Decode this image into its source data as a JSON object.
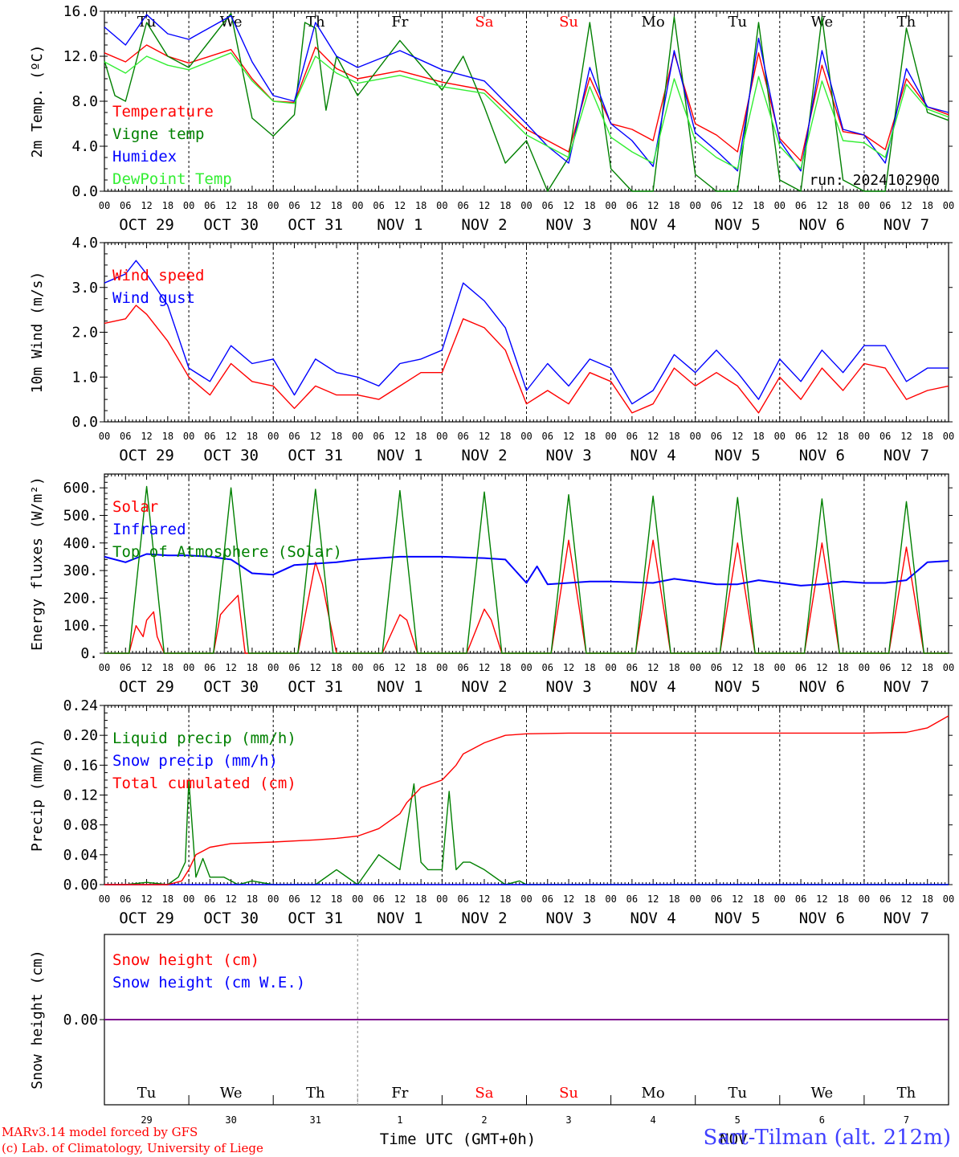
{
  "colors": {
    "red": "#ff0000",
    "green": "#008000",
    "blue": "#0000ff",
    "lightgreen": "#33ee33",
    "purple": "#800080",
    "station": "#4040ff"
  },
  "x_axis": {
    "hour_labels": [
      "00",
      "06",
      "12",
      "18"
    ],
    "date_labels": [
      "OCT 29",
      "OCT 30",
      "OCT 31",
      "NOV  1",
      "NOV  2",
      "NOV  3",
      "NOV  4",
      "NOV  5",
      "NOV  6",
      "NOV  7"
    ],
    "final_hour_label": "00",
    "weekday_labels": [
      "Tu",
      "We",
      "Th",
      "Fr",
      "Sa",
      "Su",
      "Mo",
      "Tu",
      "We",
      "Th"
    ],
    "weekend_flags": [
      false,
      false,
      false,
      false,
      true,
      true,
      false,
      false,
      false,
      false
    ],
    "day_numbers": [
      "29",
      "30",
      "31",
      "1",
      "2",
      "3",
      "4",
      "5",
      "6",
      "7"
    ],
    "month_label": "NOV",
    "title": "Time UTC (GMT+0h)"
  },
  "footer": {
    "model": "MARv3.14 model forced by GFS",
    "lab": "(c) Lab. of Climatology, University of Liege",
    "station": "Sart-Tilman (alt. 212m)"
  },
  "chart_data": [
    {
      "type": "line",
      "ylabel": "2m Temp. (ºC)",
      "ylim": [
        0,
        16
      ],
      "yticks": [
        "0.0",
        "4.0",
        "8.0",
        "12.0",
        "16.0"
      ],
      "annotation": "run: 2024102900",
      "x_unit": "hours since 2024-10-29 00 UTC",
      "series": [
        {
          "name": "Temperature",
          "color": "red",
          "x": [
            0,
            6,
            12,
            18,
            24,
            36,
            42,
            48,
            54,
            60,
            66,
            72,
            84,
            96,
            108,
            120,
            126,
            132,
            138,
            144,
            150,
            156,
            162,
            168,
            174,
            180,
            186,
            192,
            198,
            204,
            210,
            216,
            222,
            228,
            234,
            240
          ],
          "y": [
            12.3,
            11.5,
            13.0,
            12.0,
            11.4,
            12.6,
            10.0,
            8.0,
            7.9,
            12.8,
            10.9,
            10.0,
            10.7,
            9.7,
            9.0,
            5.5,
            4.5,
            3.5,
            10.1,
            6.0,
            5.5,
            4.5,
            12.3,
            6.0,
            5.0,
            3.5,
            12.3,
            4.7,
            2.7,
            11.2,
            5.3,
            5.0,
            3.7,
            10.0,
            7.5,
            6.8
          ]
        },
        {
          "name": "Vigne temp",
          "color": "green",
          "x": [
            0,
            3,
            6,
            12,
            18,
            24,
            36,
            42,
            48,
            54,
            57,
            60,
            63,
            66,
            72,
            84,
            96,
            102,
            108,
            114,
            120,
            126,
            132,
            138,
            144,
            150,
            156,
            162,
            168,
            174,
            180,
            186,
            192,
            198,
            204,
            210,
            216,
            222,
            228,
            234,
            240
          ],
          "y": [
            11.6,
            8.5,
            8.0,
            15.0,
            12.0,
            11.0,
            15.8,
            6.5,
            4.9,
            6.8,
            15.0,
            14.5,
            7.2,
            12.0,
            8.5,
            13.4,
            9.0,
            12.0,
            7.5,
            2.5,
            4.5,
            0.0,
            3.0,
            15.0,
            2.0,
            0.0,
            0.0,
            15.5,
            1.5,
            0.0,
            0.0,
            15.0,
            1.0,
            0.0,
            15.5,
            1.0,
            0.0,
            0.0,
            14.5,
            7.0,
            6.3
          ]
        },
        {
          "name": "Humidex",
          "color": "blue",
          "x": [
            0,
            6,
            12,
            18,
            24,
            36,
            42,
            48,
            54,
            60,
            66,
            72,
            84,
            96,
            108,
            120,
            126,
            132,
            138,
            144,
            150,
            156,
            162,
            168,
            174,
            180,
            186,
            192,
            198,
            204,
            210,
            216,
            222,
            228,
            234,
            240
          ],
          "y": [
            14.6,
            13.0,
            15.7,
            14.0,
            13.5,
            15.6,
            11.5,
            8.5,
            8.0,
            15.0,
            12.0,
            11.0,
            12.5,
            10.8,
            9.8,
            6.0,
            4.0,
            2.5,
            11.0,
            6.0,
            4.5,
            2.2,
            12.5,
            5.2,
            3.6,
            1.8,
            13.6,
            4.5,
            1.8,
            12.5,
            5.5,
            5.0,
            2.5,
            10.9,
            7.5,
            7.0
          ]
        },
        {
          "name": "DewPoint Temp",
          "color": "lightgreen",
          "x": [
            0,
            6,
            12,
            18,
            24,
            36,
            42,
            48,
            54,
            60,
            66,
            72,
            84,
            96,
            108,
            120,
            126,
            132,
            138,
            144,
            150,
            156,
            162,
            168,
            174,
            180,
            186,
            192,
            198,
            204,
            210,
            216,
            222,
            228,
            234,
            240
          ],
          "y": [
            11.5,
            10.5,
            12.0,
            11.2,
            10.8,
            12.3,
            9.8,
            8.0,
            7.8,
            12.0,
            10.5,
            9.6,
            10.3,
            9.3,
            8.7,
            5.0,
            4.0,
            3.0,
            9.3,
            4.8,
            3.5,
            2.5,
            10.0,
            4.5,
            3.0,
            2.0,
            10.2,
            4.0,
            2.0,
            9.8,
            4.5,
            4.3,
            3.0,
            9.5,
            7.3,
            6.6
          ]
        }
      ]
    },
    {
      "type": "line",
      "ylabel": "10m Wind (m/s)",
      "ylim": [
        0,
        4
      ],
      "yticks": [
        "0.0",
        "1.0",
        "2.0",
        "3.0",
        "4.0"
      ],
      "x_unit": "hours since 2024-10-29 00 UTC",
      "series": [
        {
          "name": "Wind speed",
          "color": "red",
          "x": [
            0,
            6,
            9,
            12,
            18,
            24,
            30,
            36,
            42,
            48,
            54,
            60,
            66,
            72,
            78,
            84,
            90,
            96,
            102,
            108,
            114,
            120,
            126,
            132,
            138,
            144,
            150,
            156,
            162,
            168,
            174,
            180,
            186,
            192,
            198,
            204,
            210,
            216,
            222,
            228,
            234,
            240
          ],
          "y": [
            2.2,
            2.3,
            2.6,
            2.4,
            1.8,
            1.0,
            0.6,
            1.3,
            0.9,
            0.8,
            0.3,
            0.8,
            0.6,
            0.6,
            0.5,
            0.8,
            1.1,
            1.1,
            2.3,
            2.1,
            1.6,
            0.4,
            0.7,
            0.4,
            1.1,
            0.9,
            0.2,
            0.4,
            1.2,
            0.8,
            1.1,
            0.8,
            0.2,
            1.0,
            0.5,
            1.2,
            0.7,
            1.3,
            1.2,
            0.5,
            0.7,
            0.8
          ]
        },
        {
          "name": "Wind gust",
          "color": "blue",
          "x": [
            0,
            6,
            9,
            12,
            18,
            24,
            30,
            36,
            42,
            48,
            54,
            60,
            66,
            72,
            78,
            84,
            90,
            96,
            102,
            108,
            114,
            120,
            126,
            132,
            138,
            144,
            150,
            156,
            162,
            168,
            174,
            180,
            186,
            192,
            198,
            204,
            210,
            216,
            222,
            228,
            234,
            240
          ],
          "y": [
            3.1,
            3.3,
            3.6,
            3.3,
            2.6,
            1.2,
            0.9,
            1.7,
            1.3,
            1.4,
            0.6,
            1.4,
            1.1,
            1.0,
            0.8,
            1.3,
            1.4,
            1.6,
            3.1,
            2.7,
            2.1,
            0.7,
            1.3,
            0.8,
            1.4,
            1.2,
            0.4,
            0.7,
            1.5,
            1.1,
            1.6,
            1.1,
            0.5,
            1.4,
            0.9,
            1.6,
            1.1,
            1.7,
            1.7,
            0.9,
            1.2,
            1.2
          ]
        }
      ]
    },
    {
      "type": "line",
      "ylabel": "Energy fluxes (W/m²)",
      "ylim": [
        0,
        650
      ],
      "yticks": [
        "0.",
        "100.",
        "200.",
        "300.",
        "400.",
        "500.",
        "600."
      ],
      "x_unit": "hours since 2024-10-29 00 UTC",
      "series": [
        {
          "name": "Solar",
          "color": "red",
          "x": [
            0,
            7,
            9,
            11,
            12,
            14,
            15,
            17,
            24,
            31,
            33,
            35,
            38,
            40,
            48,
            55,
            60,
            62,
            64,
            66,
            72,
            79,
            84,
            86,
            89,
            96,
            103,
            108,
            110,
            113,
            120,
            127,
            132,
            137,
            144,
            151,
            156,
            161,
            168,
            175,
            180,
            185,
            192,
            199,
            204,
            209,
            216,
            223,
            228,
            233,
            240
          ],
          "y": [
            0,
            0,
            100,
            60,
            120,
            150,
            60,
            0,
            0,
            0,
            140,
            170,
            210,
            0,
            0,
            0,
            330,
            250,
            120,
            0,
            0,
            0,
            140,
            120,
            0,
            0,
            0,
            160,
            120,
            0,
            0,
            0,
            410,
            0,
            0,
            0,
            410,
            0,
            0,
            0,
            400,
            0,
            0,
            0,
            400,
            0,
            0,
            0,
            385,
            0,
            0
          ]
        },
        {
          "name": "Infrared",
          "color": "blue",
          "x": [
            0,
            6,
            12,
            18,
            24,
            30,
            36,
            42,
            48,
            54,
            60,
            66,
            72,
            84,
            96,
            108,
            114,
            120,
            123,
            126,
            132,
            138,
            144,
            156,
            162,
            168,
            174,
            180,
            186,
            192,
            198,
            204,
            210,
            216,
            222,
            228,
            234,
            240
          ],
          "y": [
            350,
            330,
            360,
            355,
            355,
            350,
            340,
            290,
            285,
            320,
            325,
            330,
            340,
            350,
            350,
            345,
            340,
            255,
            315,
            250,
            255,
            260,
            260,
            255,
            270,
            260,
            250,
            250,
            265,
            255,
            245,
            250,
            260,
            255,
            255,
            265,
            330,
            335
          ]
        },
        {
          "name": "Top of Atmosphere (Solar)",
          "color": "green",
          "x": [
            0,
            7,
            12,
            17,
            24,
            31,
            36,
            41,
            48,
            55,
            60,
            65,
            72,
            79,
            84,
            89,
            96,
            103,
            108,
            113,
            120,
            127,
            132,
            137,
            144,
            151,
            156,
            161,
            168,
            175,
            180,
            185,
            192,
            199,
            204,
            209,
            216,
            223,
            228,
            233,
            240
          ],
          "y": [
            0,
            0,
            605,
            0,
            0,
            0,
            600,
            0,
            0,
            0,
            595,
            0,
            0,
            0,
            590,
            0,
            0,
            0,
            585,
            0,
            0,
            0,
            575,
            0,
            0,
            0,
            570,
            0,
            0,
            0,
            565,
            0,
            0,
            0,
            560,
            0,
            0,
            0,
            550,
            0,
            0
          ]
        }
      ]
    },
    {
      "type": "line",
      "ylabel": "Precip (mm/h)",
      "ylim": [
        0,
        0.24
      ],
      "yticks": [
        "0.00",
        "0.04",
        "0.08",
        "0.12",
        "0.16",
        "0.20",
        "0.24"
      ],
      "x_unit": "hours since 2024-10-29 00 UTC",
      "series": [
        {
          "name": "Liquid precip (mm/h)",
          "color": "green",
          "x": [
            0,
            6,
            12,
            18,
            21,
            23,
            24,
            26,
            28,
            30,
            34,
            38,
            42,
            48,
            60,
            66,
            72,
            78,
            84,
            88,
            90,
            92,
            96,
            98,
            100,
            102,
            104,
            108,
            114,
            118,
            120,
            240
          ],
          "y": [
            0,
            0,
            0.003,
            0,
            0.01,
            0.03,
            0.14,
            0.01,
            0.035,
            0.01,
            0.01,
            0,
            0.005,
            0,
            0,
            0.02,
            0,
            0.04,
            0.02,
            0.135,
            0.03,
            0.02,
            0.02,
            0.125,
            0.02,
            0.03,
            0.03,
            0.02,
            0,
            0.005,
            0,
            0
          ]
        },
        {
          "name": "Snow precip (mm/h)",
          "color": "blue",
          "x": [
            0,
            240
          ],
          "y": [
            0,
            0
          ]
        },
        {
          "name": "Total cumulated (cm)",
          "color": "red",
          "x": [
            0,
            18,
            22,
            24,
            26,
            30,
            36,
            48,
            60,
            66,
            72,
            78,
            84,
            86,
            88,
            90,
            96,
            98,
            100,
            102,
            108,
            114,
            120,
            132,
            144,
            156,
            168,
            180,
            192,
            204,
            216,
            228,
            234,
            240
          ],
          "y": [
            0,
            0,
            0.005,
            0.02,
            0.04,
            0.05,
            0.055,
            0.057,
            0.06,
            0.062,
            0.065,
            0.075,
            0.095,
            0.11,
            0.12,
            0.13,
            0.14,
            0.15,
            0.16,
            0.175,
            0.19,
            0.2,
            0.202,
            0.203,
            0.203,
            0.203,
            0.203,
            0.203,
            0.203,
            0.203,
            0.203,
            0.204,
            0.21,
            0.226
          ]
        }
      ]
    },
    {
      "type": "line",
      "ylabel": "Snow height (cm)",
      "ylim": [
        -0.01,
        0.01
      ],
      "yticks": [
        "0.00"
      ],
      "x_unit": "hours since 2024-10-29 00 UTC",
      "series": [
        {
          "name": "Snow height (cm)",
          "color": "red",
          "x": [
            0,
            240
          ],
          "y": [
            0,
            0
          ]
        },
        {
          "name": "Snow height (cm W.E.)",
          "color": "blue",
          "x": [
            0,
            240
          ],
          "y": [
            0,
            0
          ]
        }
      ]
    }
  ]
}
